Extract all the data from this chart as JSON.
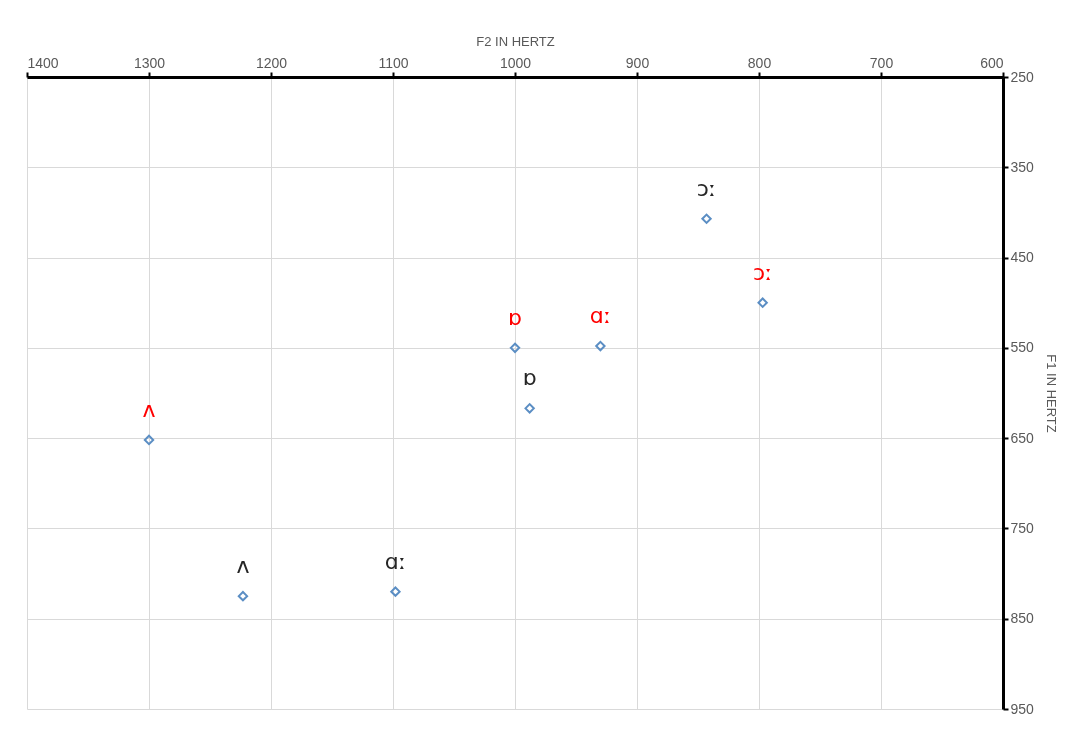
{
  "chart_data": {
    "type": "scatter",
    "xlabel": "F2 IN HERTZ",
    "ylabel": "F1 IN HERTZ",
    "xlim": [
      1400,
      600
    ],
    "xticks": [
      1400,
      1300,
      1200,
      1100,
      1000,
      900,
      800,
      700,
      600
    ],
    "ylim": [
      950,
      250
    ],
    "yticks": [
      250,
      350,
      450,
      550,
      650,
      750,
      850,
      950
    ],
    "grid": true,
    "marker": "diamond",
    "legend": false,
    "series": [
      {
        "color": "#5b8ec4",
        "x": [
          1223,
          1098,
          988,
          843
        ],
        "values": [
          825,
          820,
          617,
          407
        ],
        "value_labels": [
          "ʌ",
          "ɑː",
          "ɒ",
          "ɔː"
        ]
      },
      {
        "color": "#5b8ec4",
        "x": [
          1300,
          1000,
          930,
          797
        ],
        "values": [
          652,
          550,
          548,
          500
        ],
        "value_labels": [
          "ʌ",
          "ɒ",
          "ɑː",
          "ɔː"
        ]
      }
    ]
  }
}
